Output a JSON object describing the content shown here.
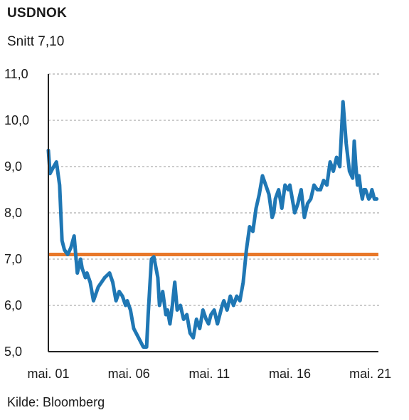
{
  "chart_data": {
    "type": "line",
    "title": "USDNOK",
    "subtitle": "Snitt 7,10",
    "source": "Kilde: Bloomberg",
    "xlabel": "",
    "ylabel": "",
    "xlim": [
      2001.0,
      2021.5
    ],
    "ylim": [
      5.0,
      11.0
    ],
    "y_ticks": [
      {
        "value": 11.0,
        "label": "11,0"
      },
      {
        "value": 10.0,
        "label": "10,0"
      },
      {
        "value": 9.0,
        "label": "9,0"
      },
      {
        "value": 8.0,
        "label": "8,0"
      },
      {
        "value": 7.0,
        "label": "7,0"
      },
      {
        "value": 6.0,
        "label": "6,0"
      },
      {
        "value": 5.0,
        "label": "5,0"
      }
    ],
    "x_ticks": [
      {
        "value": 2001.0,
        "label": "mai. 01"
      },
      {
        "value": 2006.0,
        "label": "mai. 06"
      },
      {
        "value": 2011.0,
        "label": "mai. 11"
      },
      {
        "value": 2016.0,
        "label": "mai. 16"
      },
      {
        "value": 2021.0,
        "label": "mai. 21"
      }
    ],
    "grid": true,
    "colors": {
      "series": "#1f77b4",
      "average": "#e8782a",
      "grid": "#9a9a9a",
      "axis": "#222222"
    },
    "average_line": {
      "value": 7.1
    },
    "series": [
      {
        "x": [
          2001.0,
          2001.1,
          2001.25,
          2001.5,
          2001.7,
          2001.85,
          2002.0,
          2002.2,
          2002.4,
          2002.6,
          2002.8,
          2003.0,
          2003.1,
          2003.3,
          2003.4,
          2003.6,
          2003.8,
          2004.0,
          2004.1,
          2004.3,
          2004.5,
          2004.8,
          2005.0,
          2005.2,
          2005.4,
          2005.6,
          2005.8,
          2005.9,
          2006.1,
          2006.3,
          2006.6,
          2006.9,
          2007.1,
          2007.2,
          2007.4,
          2007.55,
          2007.8,
          2007.9,
          2008.1,
          2008.3,
          2008.4,
          2008.55,
          2008.7,
          2008.85,
          2009.0,
          2009.2,
          2009.4,
          2009.6,
          2009.8,
          2010.0,
          2010.2,
          2010.4,
          2010.6,
          2010.8,
          2010.95,
          2011.1,
          2011.3,
          2011.5,
          2011.8,
          2011.9,
          2012.1,
          2012.3,
          2012.5,
          2012.7,
          2012.9,
          2013.1,
          2013.3,
          2013.5,
          2013.7,
          2013.9,
          2014.1,
          2014.3,
          2014.5,
          2014.7,
          2014.9,
          2015.0,
          2015.1,
          2015.3,
          2015.5,
          2015.7,
          2015.9,
          2016.0,
          2016.1,
          2016.3,
          2016.5,
          2016.7,
          2016.9,
          2017.1,
          2017.3,
          2017.5,
          2017.7,
          2017.9,
          2018.1,
          2018.3,
          2018.5,
          2018.7,
          2018.9,
          2019.1,
          2019.3,
          2019.5,
          2019.7,
          2019.9,
          2020.0,
          2020.1,
          2020.2,
          2020.3,
          2020.4,
          2020.5,
          2020.6,
          2020.7,
          2020.8,
          2020.9,
          2021.0,
          2021.1,
          2021.25,
          2021.4
        ],
        "y": [
          9.35,
          8.85,
          8.95,
          9.1,
          8.6,
          7.4,
          7.2,
          7.1,
          7.25,
          7.5,
          6.7,
          7.0,
          6.8,
          6.6,
          6.7,
          6.5,
          6.1,
          6.3,
          6.4,
          6.5,
          6.6,
          6.7,
          6.5,
          6.1,
          6.3,
          6.2,
          6.0,
          6.1,
          5.9,
          5.5,
          5.3,
          5.1,
          5.1,
          5.8,
          7.0,
          7.05,
          6.6,
          6.0,
          6.3,
          5.8,
          5.9,
          5.6,
          6.0,
          6.5,
          5.9,
          6.0,
          5.7,
          5.8,
          5.4,
          5.3,
          5.7,
          5.5,
          5.9,
          5.7,
          5.6,
          5.8,
          5.9,
          5.6,
          6.0,
          6.1,
          5.9,
          6.2,
          6.0,
          6.2,
          6.1,
          6.5,
          7.2,
          7.7,
          7.6,
          8.1,
          8.4,
          8.8,
          8.6,
          8.4,
          7.9,
          8.0,
          8.3,
          8.5,
          8.1,
          8.6,
          8.5,
          8.6,
          8.4,
          8.0,
          8.2,
          8.5,
          7.9,
          8.2,
          8.3,
          8.6,
          8.5,
          8.5,
          8.7,
          8.6,
          9.1,
          8.9,
          9.2,
          9.0,
          10.4,
          9.5,
          8.9,
          8.75,
          9.55,
          9.0,
          8.6,
          8.8,
          8.5,
          8.3,
          8.5,
          8.5,
          8.4,
          8.3,
          8.35,
          8.5,
          8.3,
          8.3
        ]
      }
    ]
  }
}
